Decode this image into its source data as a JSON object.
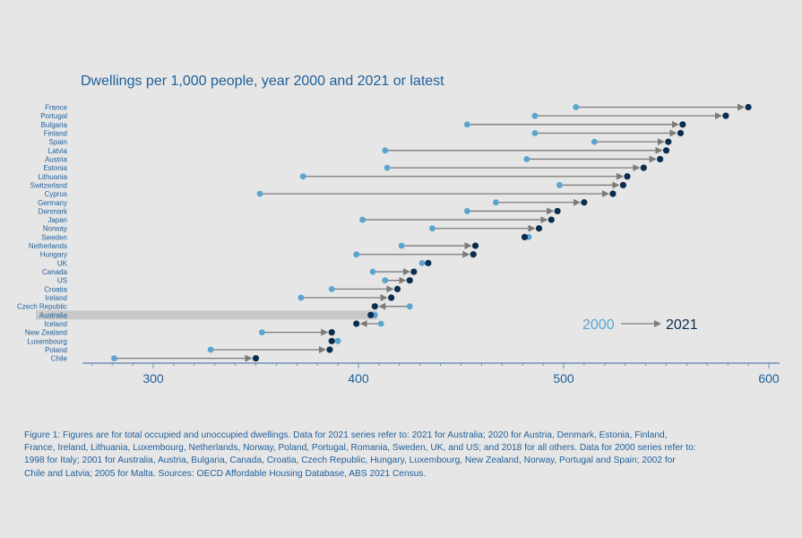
{
  "chart_data": {
    "type": "dumbbell",
    "title": "Dwellings per 1,000 people, year 2000 and 2021 or latest",
    "xlim": [
      265,
      605
    ],
    "xticks": [
      300,
      400,
      500,
      600
    ],
    "legend": {
      "series_2000": "2000",
      "series_2021": "2021",
      "placement": "bottom-right"
    },
    "highlight": "Australia",
    "colors": {
      "y2000": "#5ba4cf",
      "y2021": "#0b2d50",
      "arrow": "#7b7b7b",
      "highlight": "#c8c8c8",
      "text": "#1f5f99"
    },
    "categories": [
      "France",
      "Portugal",
      "Bulgaria",
      "Finland",
      "Spain",
      "Latvia",
      "Austria",
      "Estonia",
      "Lithuania",
      "Switzerland",
      "Cyprus",
      "Germany",
      "Denmark",
      "Japan",
      "Norway",
      "Sweden",
      "Netherlands",
      "Hungary",
      "UK",
      "Canada",
      "US",
      "Croatia",
      "Ireland",
      "Czech Republic",
      "Australia",
      "Iceland",
      "New Zealand",
      "Luxembourg",
      "Poland",
      "Chile"
    ],
    "series": [
      {
        "name": "2000",
        "values": [
          506,
          486,
          453,
          486,
          515,
          413,
          482,
          414,
          373,
          498,
          352,
          467,
          453,
          402,
          436,
          483,
          421,
          399,
          431,
          407,
          413,
          387,
          372,
          425,
          408,
          411,
          353,
          390,
          328,
          281
        ]
      },
      {
        "name": "2021",
        "values": [
          590,
          579,
          558,
          557,
          551,
          550,
          547,
          539,
          531,
          529,
          524,
          510,
          497,
          494,
          488,
          481,
          457,
          456,
          434,
          427,
          425,
          419,
          416,
          408,
          406,
          399,
          387,
          387,
          386,
          350
        ]
      }
    ]
  },
  "footnote": "Figure 1: Figures are for total occupied and unoccupied dwellings. Data for 2021 series refer to: 2021 for Australia; 2020 for Austria, Denmark, Estonia, Finland, France, Ireland, Lithuania, Luxembourg, Netherlands, Norway, Poland, Portugal, Romania, Sweden, UK, and US; and 2018 for all others. Data for 2000 series refer to: 1998 for Italy; 2001 for Australia, Austria, Bulgaria, Canada, Croatia, Czech Republic, Hungary, Luxembourg, New Zealand, Norway, Portugal and Spain; 2002 for Chile and Latvia; 2005 for Malta. Sources: OECD Affordable Housing Database, ABS 2021 Census."
}
